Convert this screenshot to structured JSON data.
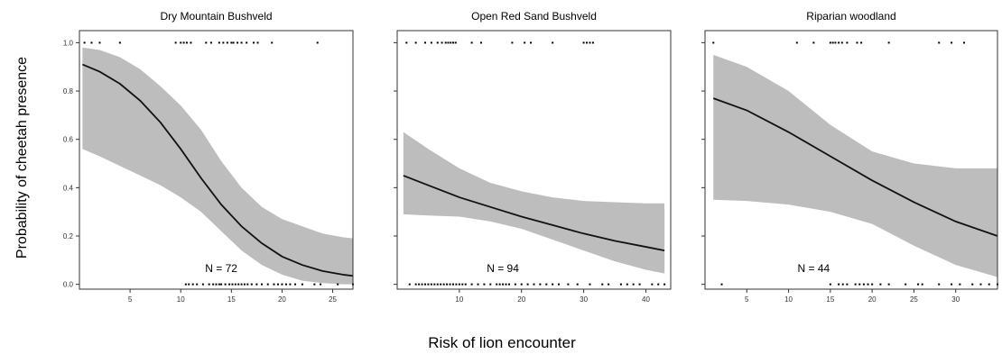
{
  "figure": {
    "ylabel": "Probability of cheetah presence",
    "xlabel": "Risk of lion encounter"
  },
  "chart_data": [
    {
      "type": "line",
      "title": "Dry Mountain Bushveld",
      "n_label": "N = 72",
      "n_label_at": [
        14,
        0.05
      ],
      "xlim": [
        0,
        27
      ],
      "ylim": [
        -0.02,
        1.05
      ],
      "xticks": [
        5,
        10,
        15,
        20,
        25
      ],
      "yticks": [
        0.0,
        0.2,
        0.4,
        0.6,
        0.8,
        1.0
      ],
      "ytick_labels": [
        "0.0",
        "0.2",
        "0.4",
        "0.6",
        "0.8",
        "1.0"
      ],
      "fit": {
        "x": [
          0.3,
          2,
          4,
          6,
          8,
          10,
          12,
          14,
          16,
          18,
          20,
          22,
          24,
          26,
          27
        ],
        "y": [
          0.91,
          0.88,
          0.83,
          0.76,
          0.67,
          0.56,
          0.44,
          0.33,
          0.24,
          0.17,
          0.115,
          0.08,
          0.055,
          0.04,
          0.035
        ],
        "lower": [
          0.56,
          0.53,
          0.49,
          0.45,
          0.41,
          0.36,
          0.3,
          0.22,
          0.14,
          0.08,
          0.04,
          0.015,
          0.005,
          0.0,
          0.0
        ],
        "upper": [
          0.98,
          0.97,
          0.94,
          0.89,
          0.82,
          0.74,
          0.64,
          0.51,
          0.4,
          0.32,
          0.27,
          0.24,
          0.21,
          0.195,
          0.19
        ]
      },
      "presence_x": [
        0.5,
        1.2,
        2,
        4,
        9.5,
        10,
        10.3,
        10.6,
        11,
        12.5,
        13,
        13.8,
        14.2,
        14.6,
        15,
        15.2,
        15.6,
        16,
        16.5,
        17.2,
        17.6,
        19,
        23.5
      ],
      "absence_x": [
        10.5,
        10.8,
        11.2,
        11.6,
        12.2,
        12.8,
        13.2,
        13.5,
        13.8,
        14,
        14.4,
        14.8,
        15.1,
        15.4,
        15.7,
        16,
        16.3,
        16.6,
        17,
        17.5,
        18,
        18.6,
        19.2,
        19.6,
        20,
        20.4,
        20.8,
        21.3,
        22,
        23.2,
        23.8,
        25.5,
        27
      ]
    },
    {
      "type": "line",
      "title": "Open Red Sand Bushveld",
      "n_label": "N = 94",
      "n_label_at": [
        17,
        0.05
      ],
      "xlim": [
        0,
        44
      ],
      "ylim": [
        -0.02,
        1.05
      ],
      "xticks": [
        10,
        20,
        30,
        40
      ],
      "yticks": [
        0.0,
        0.2,
        0.4,
        0.6,
        0.8,
        1.0
      ],
      "ytick_labels": [
        "",
        "",
        "",
        "",
        "",
        ""
      ],
      "fit": {
        "x": [
          1,
          5,
          10,
          15,
          20,
          25,
          30,
          35,
          40,
          43
        ],
        "y": [
          0.45,
          0.41,
          0.36,
          0.32,
          0.28,
          0.245,
          0.21,
          0.18,
          0.155,
          0.14
        ],
        "lower": [
          0.29,
          0.285,
          0.28,
          0.26,
          0.23,
          0.185,
          0.14,
          0.095,
          0.06,
          0.045
        ],
        "upper": [
          0.63,
          0.56,
          0.48,
          0.42,
          0.385,
          0.36,
          0.345,
          0.34,
          0.335,
          0.335
        ]
      },
      "presence_x": [
        1.5,
        3,
        4.5,
        5.5,
        6.5,
        7.2,
        7.8,
        8.2,
        8.6,
        9,
        9.4,
        12,
        13.5,
        18.5,
        20.5,
        21.5,
        25,
        30,
        30.5,
        31,
        31.5
      ],
      "absence_x": [
        2,
        3,
        3.5,
        4,
        4.5,
        5,
        5.5,
        6,
        6.5,
        7,
        7.5,
        8,
        8.5,
        9,
        9.5,
        10,
        10.5,
        11,
        12,
        13,
        14,
        15,
        16,
        16.5,
        17,
        17.5,
        18,
        19,
        20,
        21,
        22,
        23,
        24,
        25,
        26,
        27.5,
        29,
        31,
        33,
        34,
        36,
        37,
        38,
        39,
        41,
        42,
        43
      ]
    },
    {
      "type": "line",
      "title": "Riparian woodland",
      "n_label": "N = 44",
      "n_label_at": [
        13,
        0.05
      ],
      "xlim": [
        0,
        35
      ],
      "ylim": [
        -0.02,
        1.05
      ],
      "xticks": [
        5,
        10,
        15,
        20,
        25,
        30
      ],
      "yticks": [
        0.0,
        0.2,
        0.4,
        0.6,
        0.8,
        1.0
      ],
      "ytick_labels": [
        "",
        "",
        "",
        "",
        "",
        ""
      ],
      "fit": {
        "x": [
          1,
          5,
          10,
          15,
          20,
          25,
          30,
          35
        ],
        "y": [
          0.77,
          0.72,
          0.63,
          0.53,
          0.43,
          0.34,
          0.26,
          0.2
        ],
        "lower": [
          0.35,
          0.345,
          0.33,
          0.3,
          0.25,
          0.16,
          0.08,
          0.03
        ],
        "upper": [
          0.95,
          0.9,
          0.8,
          0.66,
          0.55,
          0.5,
          0.48,
          0.48
        ]
      },
      "presence_x": [
        1,
        11,
        13,
        15,
        15.3,
        15.6,
        16,
        16.4,
        17,
        18.2,
        18.7,
        22,
        28,
        29.5,
        31
      ],
      "absence_x": [
        2,
        15,
        16,
        16.5,
        17,
        18,
        18.5,
        19,
        19.5,
        20,
        21,
        22,
        24,
        25.5,
        26,
        28,
        29.5,
        30.5,
        32,
        33,
        34,
        35
      ]
    }
  ]
}
